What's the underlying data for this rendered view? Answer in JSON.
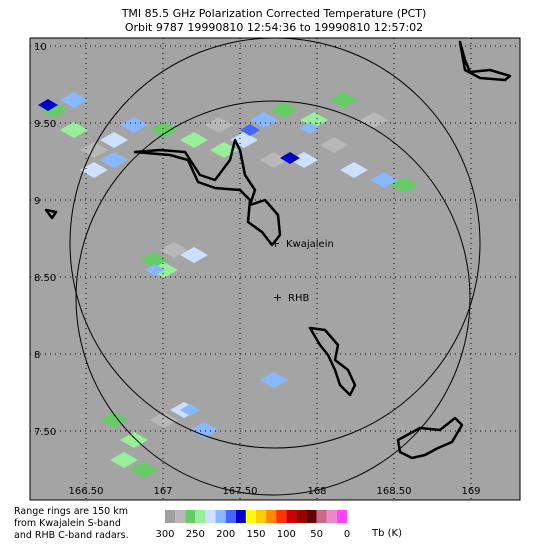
{
  "header": {
    "title": "TMI 85.5 GHz Polarization Corrected Temperature (PCT)",
    "subtitle": "Orbit 9787 19990810 12:54:36 to 19990810 12:57:02"
  },
  "map": {
    "lat_ticks": [
      10,
      {
        "value": 9.5,
        "label": "9.50"
      },
      9,
      {
        "value": 8.5,
        "label": "8.50"
      },
      8,
      {
        "value": 7.5,
        "label": "7.50"
      }
    ],
    "lon_ticks": [
      {
        "value": 166.5,
        "label": "166.50"
      },
      167,
      {
        "value": 167.5,
        "label": "167.50"
      },
      168,
      {
        "value": 168.5,
        "label": "168.50"
      },
      169
    ],
    "stations": [
      {
        "label": "Kwajalein"
      },
      {
        "label": "RHB"
      }
    ]
  },
  "note": [
    "Range rings are 150 km",
    "from Kwajalein S-band",
    "and RHB C-band radars."
  ],
  "colorbar": {
    "colors": [
      "#a0a0a0",
      "#b8b8b8",
      "#66cc66",
      "#99ee99",
      "#cce0ff",
      "#88b8ff",
      "#4466ff",
      "#0000cc",
      "#ffff00",
      "#ffcc00",
      "#ff8800",
      "#ff3300",
      "#cc0000",
      "#990000",
      "#660000",
      "#cc6688",
      "#ee88cc",
      "#ff44ff"
    ],
    "ticks": [
      300,
      250,
      200,
      150,
      100,
      50,
      0
    ],
    "units": "Tb (K)"
  }
}
